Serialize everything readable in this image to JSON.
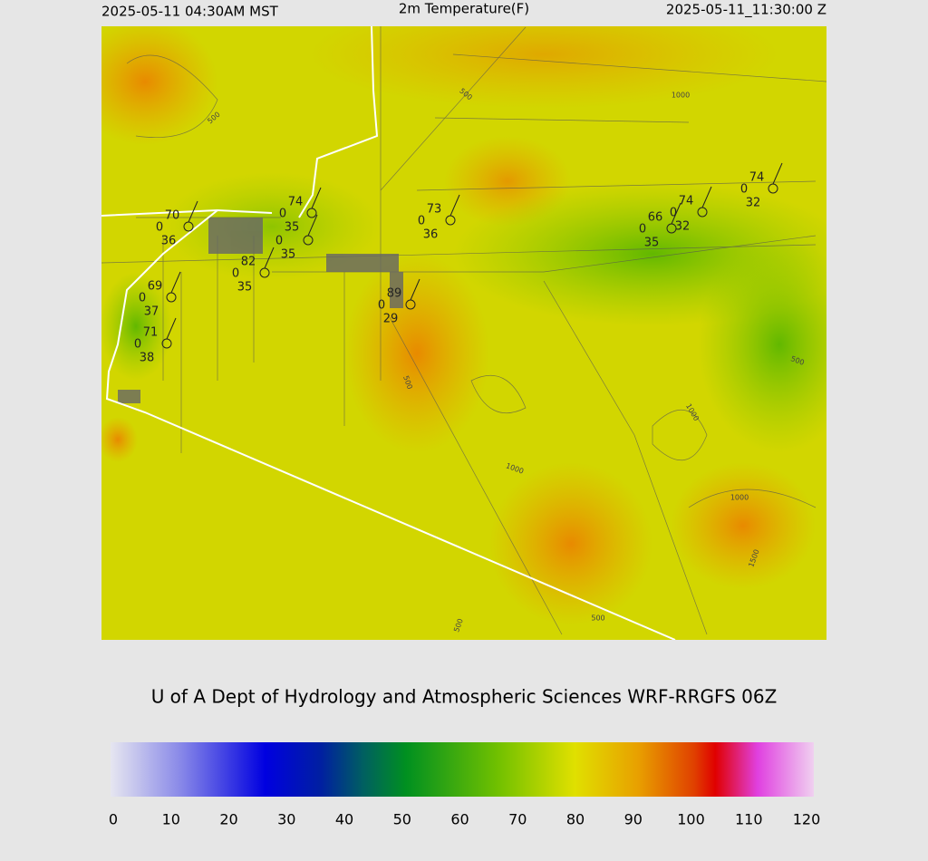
{
  "header": {
    "left": "2025-05-11 04:30AM MST",
    "title": "2m Temperature(F)",
    "right": "2025-05-11_11:30:00 Z"
  },
  "stations": [
    {
      "temp": "70",
      "mid": "0",
      "dew": "36"
    },
    {
      "temp": "74",
      "mid": "0",
      "dew": "35"
    },
    {
      "mid": "0",
      "dew": "35"
    },
    {
      "temp": "82",
      "mid": "0",
      "dew": "35"
    },
    {
      "temp": "69",
      "mid": "0",
      "dew": "37"
    },
    {
      "temp": "71",
      "mid": "0",
      "dew": "38"
    },
    {
      "temp": "89",
      "mid": "0",
      "dew": "29"
    },
    {
      "temp": "73",
      "mid": "0",
      "dew": "36"
    },
    {
      "temp": "66",
      "mid": "0",
      "dew": "35"
    },
    {
      "temp": "74",
      "mid": "0",
      "dew": "32"
    },
    {
      "temp": "74",
      "mid": "0",
      "dew": "32"
    }
  ],
  "contour_labels": [
    "500",
    "500",
    "1000",
    "500",
    "500",
    "1000",
    "1000",
    "1000",
    "500",
    "1500",
    "500"
  ],
  "credit": "U of A Dept of Hydrology and Atmospheric Sciences WRF-RRGFS 06Z",
  "colorbar": {
    "range": [
      0,
      120
    ],
    "ticks": [
      0,
      10,
      20,
      30,
      40,
      50,
      60,
      70,
      80,
      90,
      100,
      110,
      120
    ]
  }
}
